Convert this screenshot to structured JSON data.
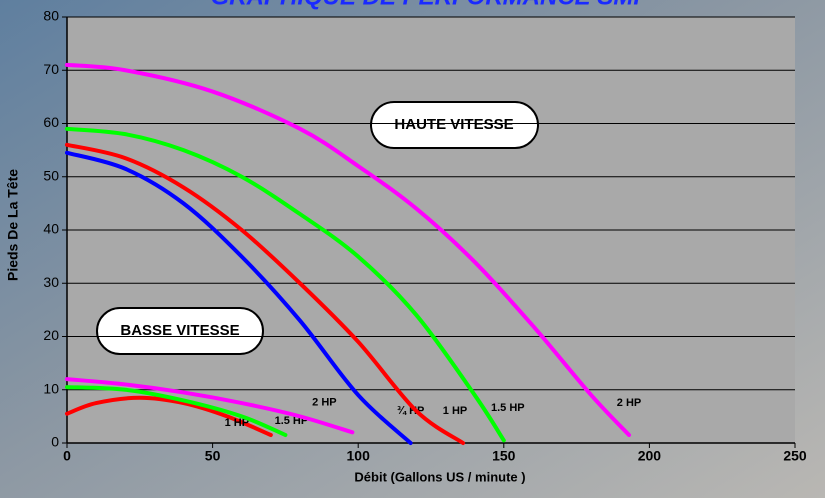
{
  "chart_data": {
    "type": "line",
    "title": "GRAPHIQUE DE PERFORMANCE SMP",
    "x_label": "Débit (Gallons US / minute )",
    "y_label": "Pieds De La Tête",
    "annotations": [
      "HAUTE VITESSE",
      "BASSE VITESSE"
    ],
    "xlim": [
      0,
      250
    ],
    "xticks": [
      0,
      50,
      100,
      150,
      200,
      250
    ],
    "ylim": [
      0,
      80
    ],
    "yticks": [
      0,
      10,
      20,
      30,
      40,
      50,
      60,
      70,
      80
    ],
    "grid": true,
    "series": [
      {
        "name": "¾ HP",
        "color": "#0000ff",
        "x": [
          0,
          20,
          40,
          60,
          80,
          100,
          118
        ],
        "values": [
          54.5,
          51.5,
          45,
          35,
          23,
          9,
          0
        ]
      },
      {
        "name": "1 HP",
        "color": "#ff0000",
        "x": [
          0,
          20,
          40,
          60,
          80,
          100,
          120,
          136
        ],
        "values": [
          56,
          53.5,
          48,
          40,
          30,
          19,
          6,
          0
        ]
      },
      {
        "name": "1.5 HP",
        "color": "#00ff00",
        "x": [
          0,
          20,
          40,
          60,
          80,
          100,
          120,
          140,
          150
        ],
        "values": [
          59,
          58,
          55,
          50,
          43,
          35,
          24,
          9,
          0.5
        ]
      },
      {
        "name": "2 HP",
        "color": "#ff00ff",
        "x": [
          0,
          20,
          50,
          80,
          100,
          120,
          140,
          160,
          180,
          193
        ],
        "values": [
          71,
          70,
          66,
          59,
          52,
          44,
          34,
          22,
          9,
          1.5
        ]
      },
      {
        "name": "1 HP",
        "color": "#ff0000",
        "x": [
          0,
          10,
          25,
          40,
          55,
          70
        ],
        "values": [
          5.5,
          7.5,
          8.5,
          7.5,
          5,
          1.5
        ]
      },
      {
        "name": "1.5 HP",
        "color": "#00ff00",
        "x": [
          0,
          20,
          40,
          60,
          75
        ],
        "values": [
          10.5,
          10,
          8,
          5,
          1.5
        ]
      },
      {
        "name": "2 HP",
        "color": "#ff00ff",
        "x": [
          0,
          20,
          40,
          60,
          80,
          98
        ],
        "values": [
          12,
          11,
          9.5,
          7.5,
          5,
          2
        ]
      }
    ]
  }
}
